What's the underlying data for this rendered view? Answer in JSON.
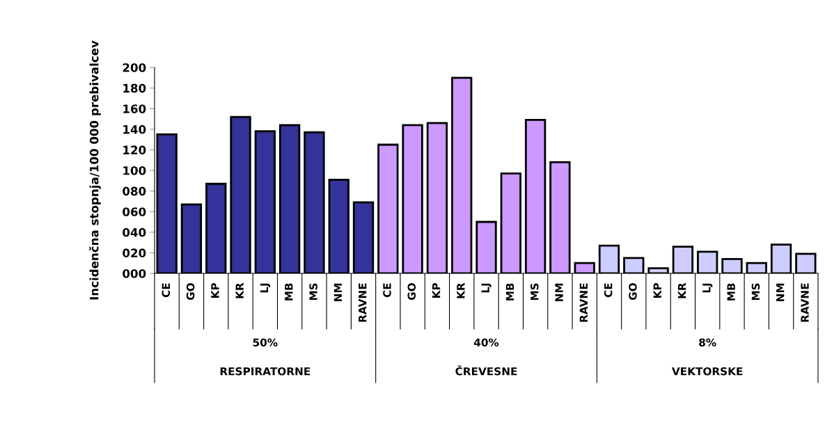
{
  "chart_data": {
    "type": "bar",
    "ylabel": "Incidenčna stopnja/100 000 prebivalcev",
    "categories": [
      "CE",
      "GO",
      "KP",
      "KR",
      "LJ",
      "MB",
      "MS",
      "NM",
      "RAVNE",
      "CE",
      "GO",
      "KP",
      "KR",
      "LJ",
      "MB",
      "MS",
      "NM",
      "RAVNE",
      "CE",
      "GO",
      "KP",
      "KR",
      "LJ",
      "MB",
      "MS",
      "NM",
      "RAVNE"
    ],
    "values": [
      135,
      67,
      87,
      152,
      138,
      144,
      137,
      91,
      69,
      125,
      144,
      146,
      190,
      50,
      97,
      149,
      108,
      10,
      27,
      15,
      5,
      26,
      21,
      14,
      10,
      28,
      19
    ],
    "colors": [
      "#333399",
      "#333399",
      "#333399",
      "#333399",
      "#333399",
      "#333399",
      "#333399",
      "#333399",
      "#333399",
      "#cc99ff",
      "#cc99ff",
      "#cc99ff",
      "#cc99ff",
      "#cc99ff",
      "#cc99ff",
      "#cc99ff",
      "#cc99ff",
      "#cc99ff",
      "#ccccff",
      "#ccccff",
      "#ccccff",
      "#ccccff",
      "#ccccff",
      "#ccccff",
      "#ccccff",
      "#ccccff",
      "#ccccff"
    ],
    "ylim": [
      0,
      200
    ],
    "yticks": [
      {
        "value": 0,
        "label": "000"
      },
      {
        "value": 20,
        "label": "020"
      },
      {
        "value": 40,
        "label": "040"
      },
      {
        "value": 60,
        "label": "060"
      },
      {
        "value": 80,
        "label": "080"
      },
      100,
      120,
      140,
      160,
      180,
      200
    ],
    "annotations": [
      "50%",
      "RESPIRATORNE",
      "40%",
      "ČREVESNE",
      "8%",
      "VEKTORSKE"
    ],
    "grid": false
  }
}
